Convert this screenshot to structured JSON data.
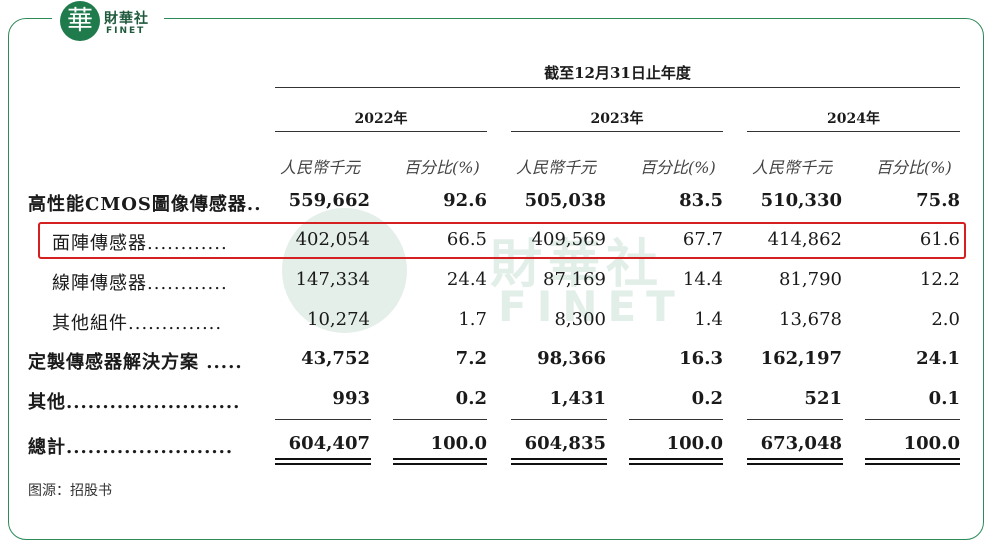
{
  "brand": {
    "logo_glyph": "華",
    "name_cn": "財華社",
    "name_en": "FINET",
    "accent": "#1f7a4c"
  },
  "table": {
    "period_header": "截至12月31日止年度",
    "years": [
      "2022年",
      "2023年",
      "2024年"
    ],
    "col_headers": {
      "amount": "人民幣千元",
      "percent": "百分比(%)"
    },
    "rows": [
      {
        "label": "高性能CMOS圖像傳感器..",
        "values": [
          "559,662",
          "92.6",
          "505,038",
          "83.5",
          "510,330",
          "75.8"
        ]
      },
      {
        "label": "面陣傳感器............",
        "values": [
          "402,054",
          "66.5",
          "409,569",
          "67.7",
          "414,862",
          "61.6"
        ]
      },
      {
        "label": "線陣傳感器............",
        "values": [
          "147,334",
          "24.4",
          "87,169",
          "14.4",
          "81,790",
          "12.2"
        ]
      },
      {
        "label": "其他組件..............",
        "values": [
          "10,274",
          "1.7",
          "8,300",
          "1.4",
          "13,678",
          "2.0"
        ]
      },
      {
        "label": "定製傳感器解決方案 .....",
        "values": [
          "43,752",
          "7.2",
          "98,366",
          "16.3",
          "162,197",
          "24.1"
        ]
      },
      {
        "label": "其他........................",
        "values": [
          "993",
          "0.2",
          "1,431",
          "0.2",
          "521",
          "0.1"
        ]
      },
      {
        "label": "總計.......................",
        "values": [
          "604,407",
          "100.0",
          "604,835",
          "100.0",
          "673,048",
          "100.0"
        ]
      }
    ],
    "highlight_color": "#d42020"
  },
  "source": "图源：招股书"
}
